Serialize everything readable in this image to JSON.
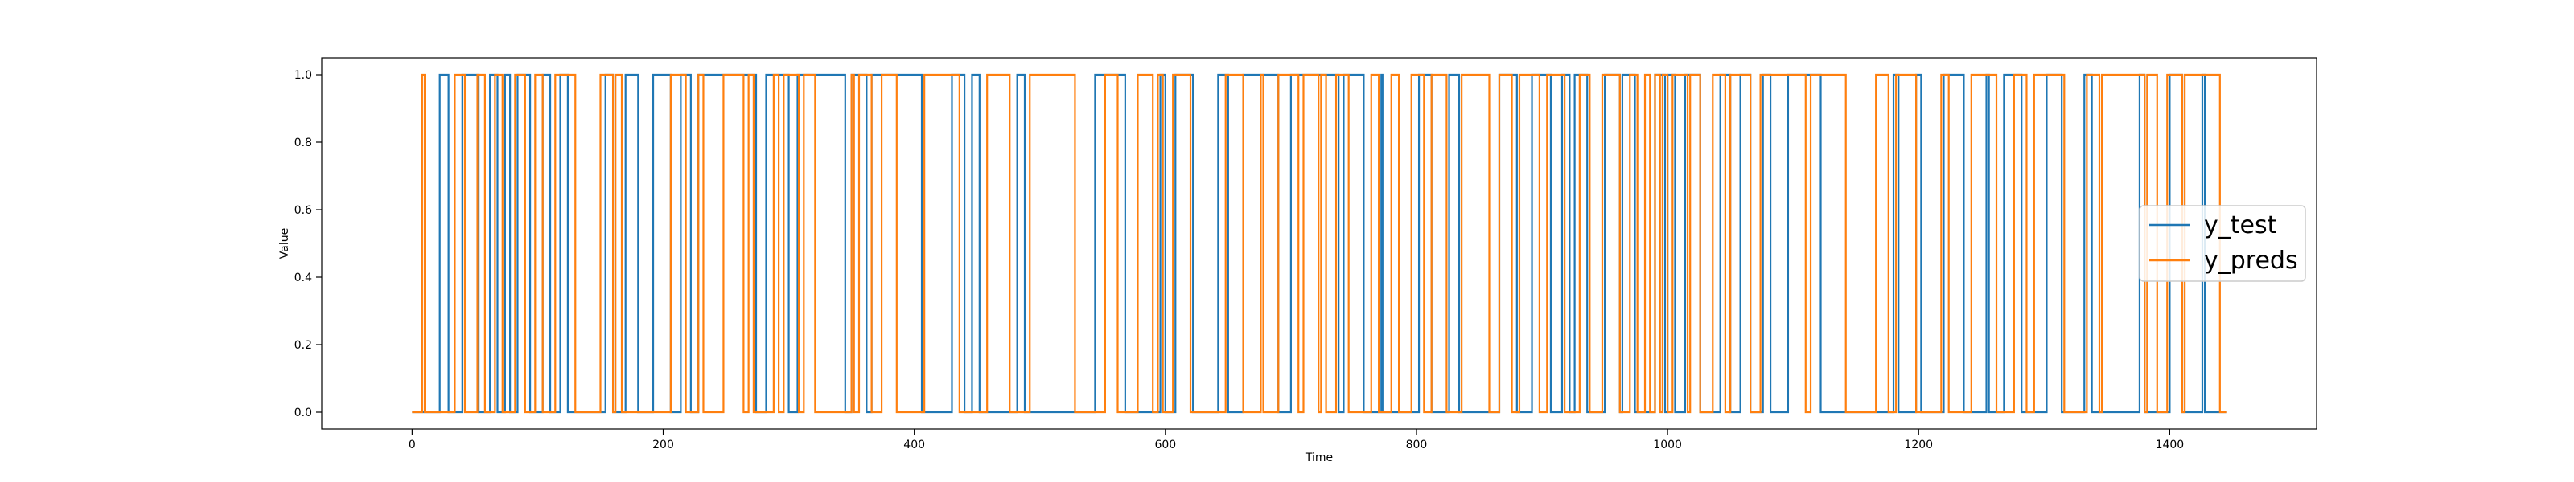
{
  "chart_data": {
    "type": "line",
    "title": "",
    "xlabel": "Time",
    "ylabel": "Value",
    "xlim": [
      -72,
      1517
    ],
    "ylim": [
      -0.05,
      1.05
    ],
    "xticks": [
      0,
      200,
      400,
      600,
      800,
      1000,
      1200,
      1400
    ],
    "yticks": [
      "0.0",
      "0.2",
      "0.4",
      "0.6",
      "0.8",
      "1.0"
    ],
    "grid": false,
    "legend_position": "right",
    "legend": [
      "y_test",
      "y_preds"
    ],
    "colors": {
      "y_test": "#1f77b4",
      "y_preds": "#ff7f0e"
    },
    "series": [
      {
        "name": "y_test",
        "start": 0,
        "end": 1445,
        "initial": 0,
        "toggles": [
          22,
          29,
          40,
          53,
          62,
          68,
          74,
          78,
          84,
          94,
          104,
          110,
          118,
          124,
          154,
          160,
          170,
          180,
          192,
          206,
          214,
          222,
          228,
          274,
          282,
          300,
          307,
          345,
          350,
          362,
          366,
          406,
          430,
          440,
          446,
          452,
          482,
          488,
          544,
          568,
          596,
          600,
          608,
          622,
          642,
          650,
          662,
          690,
          700,
          738,
          742,
          758,
          772,
          773,
          802,
          812,
          826,
          834,
          866,
          880,
          892,
          907,
          916,
          922,
          926,
          936,
          950,
          962,
          964,
          974,
          990,
          998,
          1000,
          1006,
          1014,
          1026,
          1042,
          1050,
          1058,
          1066,
          1076,
          1082,
          1096,
          1122,
          1180,
          1184,
          1198,
          1202,
          1220,
          1236,
          1254,
          1256,
          1268,
          1282,
          1302,
          1314,
          1332,
          1338,
          1376,
          1380,
          1400,
          1410,
          1426,
          1428
        ]
      },
      {
        "name": "y_preds",
        "start": 0,
        "end": 1445,
        "initial": 0,
        "toggles": [
          8,
          10,
          34,
          42,
          52,
          58,
          66,
          72,
          82,
          90,
          98,
          104,
          114,
          130,
          150,
          160,
          162,
          167,
          206,
          218,
          228,
          232,
          248,
          264,
          268,
          272,
          288,
          292,
          296,
          308,
          312,
          321,
          350,
          352,
          356,
          366,
          374,
          386,
          408,
          436,
          458,
          476,
          492,
          528,
          552,
          562,
          578,
          590,
          594,
          598,
          606,
          620,
          648,
          662,
          676,
          678,
          690,
          706,
          710,
          722,
          724,
          728,
          736,
          746,
          764,
          770,
          780,
          786,
          796,
          806,
          812,
          824,
          836,
          858,
          866,
          876,
          882,
          898,
          904,
          918,
          930,
          938,
          948,
          962,
          970,
          976,
          982,
          986,
          990,
          994,
          996,
          1000,
          1004,
          1016,
          1018,
          1026,
          1036,
          1046,
          1050,
          1066,
          1074,
          1110,
          1114,
          1142,
          1166,
          1176,
          1182,
          1198,
          1218,
          1224,
          1242,
          1262,
          1276,
          1286,
          1292,
          1316,
          1334,
          1344,
          1346,
          1380,
          1382,
          1390,
          1398,
          1410,
          1412,
          1440
        ]
      }
    ]
  }
}
